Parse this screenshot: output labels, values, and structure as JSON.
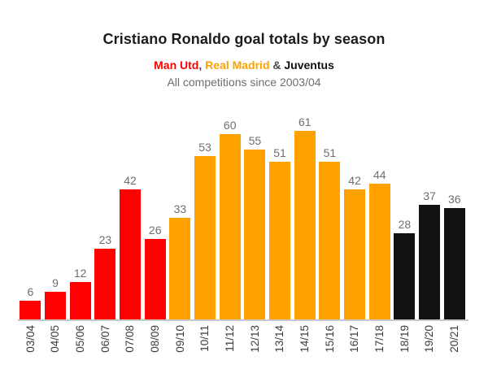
{
  "header": {
    "title": "Cristiano Ronaldo goal totals by season",
    "subtitle": {
      "team1": "Man Utd",
      "sep1": ", ",
      "team2": "Real Madrid",
      "sep2": " & ",
      "team3": "Juventus"
    },
    "note": "All competitions since 2003/04"
  },
  "colors": {
    "man_utd": "#ff0000",
    "real_madrid": "#ffa200",
    "juventus": "#111111",
    "value_label": "#6f6f6f",
    "tick_label": "#3d3d3d",
    "axis_line": "#c9c9c9",
    "title_text": "#1c1c1c",
    "note_text": "#6e6e6e"
  },
  "chart_data": {
    "type": "bar",
    "title": "Cristiano Ronaldo goal totals by season",
    "subtitle": "Man Utd, Real Madrid & Juventus",
    "note": "All competitions since 2003/04",
    "categories": [
      "03/04",
      "04/05",
      "05/06",
      "06/07",
      "07/08",
      "08/09",
      "09/10",
      "10/11",
      "11/12",
      "12/13",
      "13/14",
      "14/15",
      "15/16",
      "16/17",
      "17/18",
      "18/19",
      "19/20",
      "20/21"
    ],
    "values": [
      6,
      9,
      12,
      23,
      42,
      26,
      33,
      53,
      60,
      55,
      51,
      61,
      51,
      42,
      44,
      28,
      37,
      36
    ],
    "teams": [
      "man_utd",
      "man_utd",
      "man_utd",
      "man_utd",
      "man_utd",
      "man_utd",
      "real_madrid",
      "real_madrid",
      "real_madrid",
      "real_madrid",
      "real_madrid",
      "real_madrid",
      "real_madrid",
      "real_madrid",
      "real_madrid",
      "juventus",
      "juventus",
      "juventus"
    ],
    "team_colors": {
      "man_utd": "#ff0000",
      "real_madrid": "#ffa200",
      "juventus": "#111111"
    },
    "ylim": [
      0,
      65
    ],
    "grid": false,
    "legend_position": "none",
    "value_labels": true,
    "x_tick_rotation": -90
  }
}
